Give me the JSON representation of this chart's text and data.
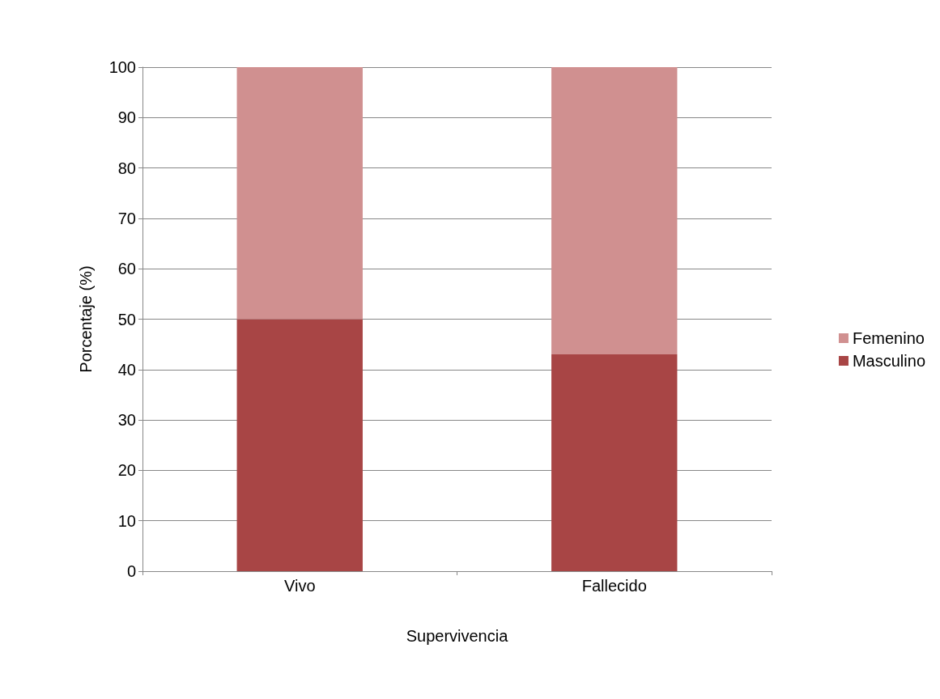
{
  "chart_data": {
    "type": "bar",
    "stacked": true,
    "xlabel": "Supervivencia",
    "ylabel": "Porcentaje (%)",
    "categories": [
      "Vivo",
      "Fallecido"
    ],
    "series": [
      {
        "name": "Masculino",
        "color": "#a84545",
        "values": [
          50,
          43
        ]
      },
      {
        "name": "Femenino",
        "color": "#d09090",
        "values": [
          50,
          57
        ]
      }
    ],
    "ylim": [
      0,
      100
    ],
    "yticks": [
      0,
      10,
      20,
      30,
      40,
      50,
      60,
      70,
      80,
      90,
      100
    ],
    "grid": "y",
    "legend": "right"
  }
}
